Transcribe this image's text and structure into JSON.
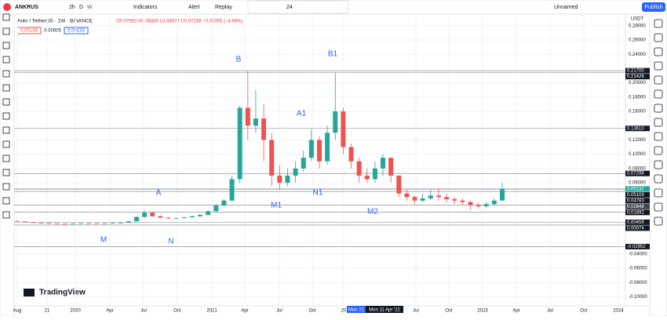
{
  "toolbar": {
    "symbol": "ANKRUS",
    "intervals": [
      "2h",
      "D",
      "W"
    ],
    "indicators": "Indicators",
    "alert": "Alert",
    "replay": "Replay",
    "font_size": "24",
    "layout": "Unnamed",
    "publish": "Publish"
  },
  "legend": {
    "title": "Ankr / TetherUS · 1W · BINANCE",
    "ohlc": "O0.07592 H0.08330 L0.06677 C0.07238 −0.00355 (−4.68%)",
    "bid": "0.05138",
    "spread": "0.00005",
    "ask": "0.05133"
  },
  "watermark": "TradingView",
  "currency": "USDT",
  "chart_data": {
    "type": "candlestick",
    "series": [
      {
        "name": "ANKRUSDT",
        "open": [
          0.0065,
          0.0058,
          0.0045,
          0.004,
          0.0035,
          0.003,
          0.0025,
          0.0022,
          0.0028,
          0.0032,
          0.003,
          0.0026,
          0.003,
          0.0035,
          0.004,
          0.006,
          0.012,
          0.018,
          0.013,
          0.011,
          0.01,
          0.0105,
          0.0115,
          0.013,
          0.015,
          0.02,
          0.028,
          0.035,
          0.065,
          0.165,
          0.14,
          0.15,
          0.12,
          0.07,
          0.06,
          0.07,
          0.08,
          0.095,
          0.12,
          0.09,
          0.13,
          0.16,
          0.11,
          0.09,
          0.07,
          0.065,
          0.08,
          0.095,
          0.07,
          0.045,
          0.04,
          0.035,
          0.038,
          0.042,
          0.04,
          0.037,
          0.035,
          0.033,
          0.029,
          0.027,
          0.03,
          0.035
        ],
        "high": [
          0.007,
          0.0062,
          0.005,
          0.0044,
          0.0038,
          0.0033,
          0.0028,
          0.003,
          0.0034,
          0.0035,
          0.0032,
          0.0031,
          0.0036,
          0.0042,
          0.0065,
          0.013,
          0.021,
          0.019,
          0.014,
          0.0118,
          0.0112,
          0.0122,
          0.0138,
          0.016,
          0.0215,
          0.03,
          0.037,
          0.07,
          0.168,
          0.217,
          0.19,
          0.17,
          0.13,
          0.085,
          0.08,
          0.09,
          0.105,
          0.135,
          0.125,
          0.14,
          0.2143,
          0.165,
          0.115,
          0.095,
          0.08,
          0.09,
          0.1,
          0.095,
          0.07,
          0.05,
          0.042,
          0.045,
          0.05,
          0.052,
          0.045,
          0.04,
          0.038,
          0.035,
          0.032,
          0.033,
          0.038,
          0.06
        ],
        "low": [
          0.0055,
          0.0043,
          0.0038,
          0.0033,
          0.0028,
          0.0023,
          0.002,
          0.002,
          0.0026,
          0.0028,
          0.0024,
          0.0024,
          0.0028,
          0.0033,
          0.0038,
          0.0058,
          0.0115,
          0.0125,
          0.0105,
          0.0095,
          0.0095,
          0.01,
          0.011,
          0.0125,
          0.0145,
          0.0195,
          0.027,
          0.034,
          0.06,
          0.12,
          0.13,
          0.09,
          0.055,
          0.05,
          0.055,
          0.06,
          0.075,
          0.09,
          0.08,
          0.085,
          0.12,
          0.1,
          0.08,
          0.06,
          0.06,
          0.06,
          0.07,
          0.06,
          0.04,
          0.035,
          0.03,
          0.033,
          0.036,
          0.035,
          0.032,
          0.03,
          0.029,
          0.022,
          0.024,
          0.025,
          0.028,
          0.038
        ],
        "close": [
          0.0058,
          0.0045,
          0.004,
          0.0035,
          0.003,
          0.0025,
          0.0022,
          0.0028,
          0.0032,
          0.003,
          0.0026,
          0.003,
          0.0035,
          0.004,
          0.006,
          0.012,
          0.018,
          0.013,
          0.011,
          0.01,
          0.0105,
          0.0115,
          0.013,
          0.015,
          0.02,
          0.028,
          0.035,
          0.065,
          0.165,
          0.14,
          0.15,
          0.12,
          0.07,
          0.06,
          0.07,
          0.08,
          0.095,
          0.12,
          0.09,
          0.13,
          0.16,
          0.11,
          0.09,
          0.07,
          0.065,
          0.08,
          0.095,
          0.07,
          0.045,
          0.04,
          0.035,
          0.038,
          0.042,
          0.04,
          0.037,
          0.035,
          0.033,
          0.029,
          0.027,
          0.03,
          0.035,
          0.05132
        ],
        "up_color": "#26a69a",
        "down_color": "#ef5350"
      }
    ],
    "ylim": [
      -0.1126,
      0.2963
    ],
    "yticks": [
      {
        "value": 0.28,
        "label": "0.28000"
      },
      {
        "value": 0.26,
        "label": "0.26000"
      },
      {
        "value": 0.24,
        "label": "0.24000"
      },
      {
        "value": 0.2,
        "label": "0.20000"
      },
      {
        "value": 0.18,
        "label": "0.18000"
      },
      {
        "value": 0.16,
        "label": "0.16000"
      },
      {
        "value": 0.12,
        "label": "0.12000"
      },
      {
        "value": 0.1,
        "label": "0.10000"
      },
      {
        "value": 0.08,
        "label": "0.08000"
      },
      {
        "value": 0.06,
        "label": "0.06000"
      },
      {
        "value": -0.04,
        "label": "-0.04000"
      },
      {
        "value": -0.06,
        "label": "-0.06000"
      },
      {
        "value": -0.08,
        "label": "-0.08000"
      },
      {
        "value": -0.1,
        "label": "-0.10000"
      }
    ],
    "price_lines": [
      {
        "value": 0.217,
        "label": "0.21700"
      },
      {
        "value": 0.21426,
        "label": "0.21426"
      },
      {
        "value": 0.1361,
        "label": "0.13610"
      },
      {
        "value": 0.07298,
        "label": "0.07298"
      },
      {
        "value": 0.05132,
        "label": "0.05132"
      },
      {
        "value": 0.05109,
        "label": "0.05109"
      },
      {
        "value": 0.04783,
        "label": "0.04783"
      },
      {
        "value": 0.02848,
        "label": "0.02848"
      },
      {
        "value": 0.01892,
        "label": "0.01892"
      },
      {
        "value": 0.00459,
        "label": "0.00459"
      },
      {
        "value": 0.00074,
        "label": "0.00074"
      },
      {
        "value": -0.02952,
        "label": "-0.02952"
      }
    ],
    "xtick_labels": [
      "Aug",
      "21",
      "2020",
      "Apr",
      "Jul",
      "Oct",
      "2021",
      "Apr",
      "Jul",
      "Oct",
      "20",
      "Jul",
      "Oct",
      "2023",
      "Apr",
      "Jul",
      "Oct",
      "2024"
    ],
    "cursor_labels": [
      "Mon 21",
      "Mon 11 Apr '22"
    ],
    "annotations": [
      "M",
      "N",
      "A",
      "B",
      "M1",
      "A1",
      "B1",
      "N1",
      "M2"
    ],
    "grid": true
  }
}
